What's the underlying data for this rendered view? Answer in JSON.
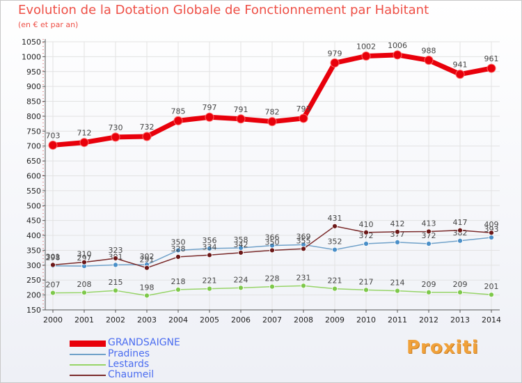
{
  "title": "Evolution de la Dotation Globale de Fonctionnement par Habitant",
  "subtitle": "(en € et par an)",
  "logo_text": "Proxiti",
  "colors": {
    "title": "#ee4f46",
    "grid": "#e2e2e2",
    "axis": "#555555",
    "tick_text": "#222222",
    "label_text": "#444444"
  },
  "chart_data": {
    "type": "line",
    "title": "Evolution de la Dotation Globale de Fonctionnement par Habitant",
    "subtitle": "(en € et par an)",
    "xlabel": "",
    "ylabel": "",
    "grid": true,
    "legend_position": "bottom-left",
    "ylim": [
      150,
      1050
    ],
    "yticks": [
      150,
      200,
      250,
      300,
      350,
      400,
      450,
      500,
      550,
      600,
      650,
      700,
      750,
      800,
      850,
      900,
      950,
      1000,
      1050
    ],
    "categories": [
      "2000",
      "2001",
      "2002",
      "2003",
      "2004",
      "2005",
      "2006",
      "2007",
      "2008",
      "2009",
      "2010",
      "2011",
      "2012",
      "2013",
      "2014"
    ],
    "series": [
      {
        "name": "GRANDSAIGNE",
        "color": "#e8000b",
        "marker_color": "#e8000b",
        "values": [
          703,
          712,
          730,
          732,
          785,
          797,
          791,
          782,
          793,
          979,
          1002,
          1006,
          988,
          941,
          961
        ],
        "labels": [
          "703",
          "712",
          "730",
          "732",
          "785",
          "797",
          "791",
          "782",
          "793",
          "979",
          "1002",
          "1006",
          "988",
          "941",
          "961"
        ]
      },
      {
        "name": "Pradines",
        "color": "#6fa1c9",
        "marker_color": "#4a8fc8",
        "values": [
          298,
          297,
          301,
          302,
          350,
          356,
          358,
          366,
          369,
          352,
          372,
          377,
          372,
          382,
          393
        ],
        "labels": [
          "298",
          "297",
          "301",
          "302",
          "350",
          "356",
          "358",
          "366",
          "369",
          "352",
          "372",
          "377",
          "372",
          "382",
          "393"
        ]
      },
      {
        "name": "Lestards",
        "color": "#96d467",
        "marker_color": "#7dc84a",
        "values": [
          207,
          208,
          215,
          198,
          218,
          221,
          224,
          228,
          231,
          221,
          217,
          214,
          209,
          209,
          201
        ],
        "labels": [
          "207",
          "208",
          "215",
          "198",
          "218",
          "221",
          "224",
          "228",
          "231",
          "221",
          "217",
          "214",
          "209",
          "209",
          "201"
        ]
      },
      {
        "name": "Chaumeil",
        "color": "#7a2a2a",
        "marker_color": "#6b1717",
        "values": [
          301,
          310,
          323,
          291,
          328,
          334,
          342,
          350,
          355,
          431,
          410,
          412,
          413,
          417,
          409
        ],
        "labels": [
          "301",
          "310",
          "323",
          "291",
          "328",
          "334",
          "342",
          "350",
          "355",
          "431",
          "410",
          "412",
          "413",
          "417",
          "409"
        ]
      }
    ]
  }
}
